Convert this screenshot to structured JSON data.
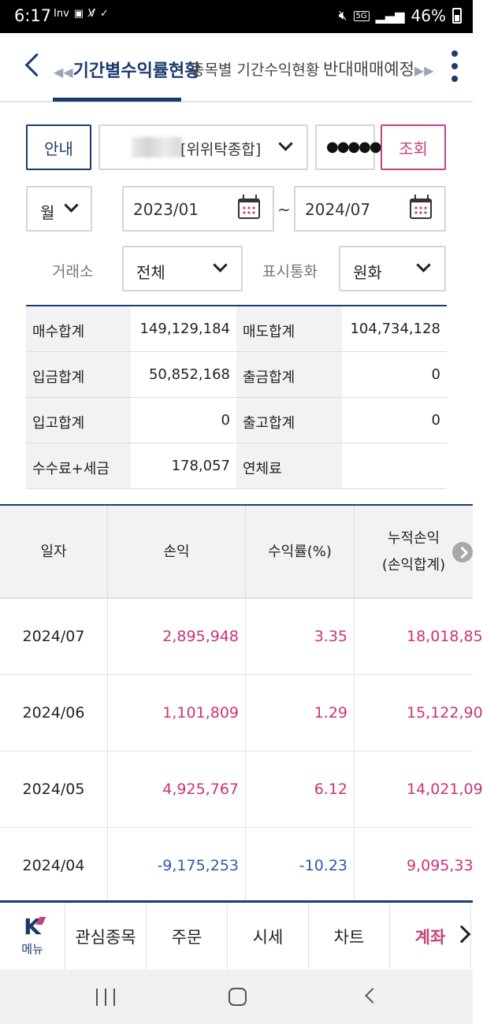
{
  "status_bar": {
    "time": "6:17",
    "app_icons": [
      "Inv",
      "▣",
      "V̸",
      "✓"
    ],
    "net": "5G",
    "battery": "46%"
  },
  "top_tabs": [
    {
      "label": "기간별수익률현황",
      "active": true
    },
    {
      "label": "종목별 기간수익현황",
      "active": false
    },
    {
      "label": "반대매매예정",
      "active": false
    }
  ],
  "controls": {
    "guide_label": "안내",
    "account_label": "[위위탁종합]",
    "password_mask": "●●●●●●",
    "query_label": "조회",
    "period_unit": "월",
    "start_date": "2023/01",
    "tilde": "~",
    "end_date": "2024/07",
    "exchange_label": "거래소",
    "exchange_value": "전체",
    "currency_label": "표시통화",
    "currency_value": "원화"
  },
  "summary": [
    {
      "l1": "매수합계",
      "v1": "149,129,184",
      "l2": "매도합계",
      "v2": "104,734,128"
    },
    {
      "l1": "입금합계",
      "v1": "50,852,168",
      "l2": "출금합계",
      "v2": "0"
    },
    {
      "l1": "입고합계",
      "v1": "0",
      "l2": "출고합계",
      "v2": "0"
    },
    {
      "l1": "수수료+세금",
      "v1": "178,057",
      "l2": "연체료",
      "v2": ""
    }
  ],
  "table": {
    "headers": [
      "일자",
      "손익",
      "수익률(%)",
      "누적손익",
      "(손익합계)"
    ],
    "rows": [
      {
        "date": "2024/07",
        "pnl": "2,895,948",
        "rate": "3.35",
        "cum": "18,018,85",
        "sign": "pos"
      },
      {
        "date": "2024/06",
        "pnl": "1,101,809",
        "rate": "1.29",
        "cum": "15,122,90",
        "sign": "pos"
      },
      {
        "date": "2024/05",
        "pnl": "4,925,767",
        "rate": "6.12",
        "cum": "14,021,09",
        "sign": "pos"
      },
      {
        "date": "2024/04",
        "pnl": "-9,175,253",
        "rate": "-10.23",
        "cum": "9,095,33",
        "sign": "neg"
      }
    ]
  },
  "bottom_menu": {
    "logo": "K",
    "menu_label": "메뉴",
    "items": [
      "관심종목",
      "주문",
      "시세",
      "차트",
      "계좌"
    ]
  },
  "colors": {
    "navy": "#1b3b6f",
    "pink": "#c8417f",
    "positive": "#cc3377",
    "negative": "#2a5caa"
  }
}
